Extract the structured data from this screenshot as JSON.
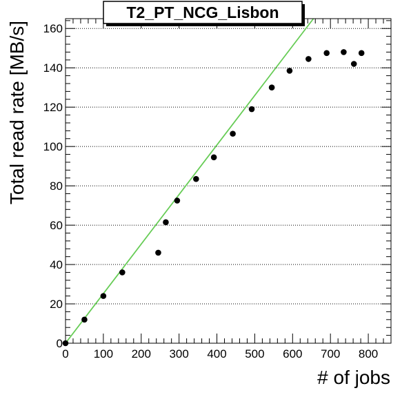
{
  "chart_data": {
    "type": "scatter",
    "title": "T2_PT_NCG_Lisbon",
    "xlabel": "# of jobs",
    "ylabel": "Total read rate [MB/s]",
    "xlim": [
      0,
      860
    ],
    "ylim": [
      0,
      165
    ],
    "x_ticks": [
      0,
      100,
      200,
      300,
      400,
      500,
      600,
      700,
      800
    ],
    "y_ticks": [
      0,
      20,
      40,
      60,
      80,
      100,
      120,
      140,
      160
    ],
    "grid": {
      "x": false,
      "y": true,
      "style": "dotted"
    },
    "series": [
      {
        "marker_color": "#000000",
        "points": [
          {
            "x": 0,
            "y": 0
          },
          {
            "x": 50,
            "y": 12
          },
          {
            "x": 100,
            "y": 24
          },
          {
            "x": 150,
            "y": 36
          },
          {
            "x": 245,
            "y": 46
          },
          {
            "x": 265,
            "y": 61.5
          },
          {
            "x": 295,
            "y": 72.5
          },
          {
            "x": 345,
            "y": 83.5
          },
          {
            "x": 392,
            "y": 94.5
          },
          {
            "x": 442,
            "y": 106.5
          },
          {
            "x": 492,
            "y": 119
          },
          {
            "x": 545,
            "y": 130
          },
          {
            "x": 592,
            "y": 138.5
          },
          {
            "x": 642,
            "y": 144.5
          },
          {
            "x": 690,
            "y": 147.5
          },
          {
            "x": 735,
            "y": 148
          },
          {
            "x": 762,
            "y": 142
          },
          {
            "x": 782,
            "y": 147.5
          }
        ]
      }
    ],
    "fit_line": {
      "color": "#66cc55",
      "points": [
        {
          "x": 0,
          "y": 0
        },
        {
          "x": 655,
          "y": 165
        }
      ]
    }
  }
}
